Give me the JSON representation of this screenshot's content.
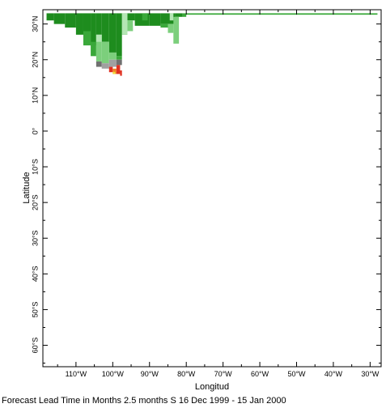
{
  "map": {
    "xlabel": "Longitud",
    "ylabel": "Latitude",
    "x_ticks": [
      {
        "lon": -110,
        "label": "110°W"
      },
      {
        "lon": -100,
        "label": "100°W"
      },
      {
        "lon": -90,
        "label": "90°W"
      },
      {
        "lon": -80,
        "label": "80°W"
      },
      {
        "lon": -70,
        "label": "70°W"
      },
      {
        "lon": -60,
        "label": "60°W"
      },
      {
        "lon": -50,
        "label": "50°W"
      },
      {
        "lon": -40,
        "label": "40°W"
      },
      {
        "lon": -30,
        "label": "30°W"
      }
    ],
    "y_ticks": [
      {
        "lat": 30,
        "label": "30°N"
      },
      {
        "lat": 20,
        "label": "20°N"
      },
      {
        "lat": 10,
        "label": "10°N"
      },
      {
        "lat": 0,
        "label": "0°"
      },
      {
        "lat": -10,
        "label": "10°S"
      },
      {
        "lat": -20,
        "label": "20°S"
      },
      {
        "lat": -30,
        "label": "30°S"
      },
      {
        "lat": -40,
        "label": "40°S"
      },
      {
        "lat": -50,
        "label": "50°S"
      },
      {
        "lat": -60,
        "label": "60°S"
      }
    ],
    "xlim": [
      -119,
      -27
    ],
    "ylim": [
      -66,
      34
    ],
    "colors": {
      "dark_green": "#1e8c1e",
      "mid_green": "#3aa83a",
      "light_green": "#7ccf7c",
      "pale_green": "#b4e6b4",
      "gray": "#a0a0a0",
      "dark_gray": "#707070",
      "red": "#e03020",
      "orange": "#f08020",
      "yellow": "#f0e040"
    },
    "cells": [
      {
        "lon0": -118.0,
        "lon1": -116.0,
        "lat0": 31.0,
        "lat1": 33.0,
        "c": "dark_green"
      },
      {
        "lon0": -116.0,
        "lon1": -113.0,
        "lat0": 30.0,
        "lat1": 33.0,
        "c": "dark_green"
      },
      {
        "lon0": -113.0,
        "lon1": -110.0,
        "lat0": 29.0,
        "lat1": 33.0,
        "c": "dark_green"
      },
      {
        "lon0": -110.0,
        "lon1": -108.0,
        "lat0": 27.0,
        "lat1": 33.0,
        "c": "dark_green"
      },
      {
        "lon0": -108.0,
        "lon1": -106.0,
        "lat0": 25.0,
        "lat1": 33.0,
        "c": "dark_green"
      },
      {
        "lon0": -106.0,
        "lon1": -104.5,
        "lat0": 24.0,
        "lat1": 33.0,
        "c": "dark_green"
      },
      {
        "lon0": -104.5,
        "lon1": -103.0,
        "lat0": 27.0,
        "lat1": 33.0,
        "c": "dark_green"
      },
      {
        "lon0": -103.0,
        "lon1": -101.0,
        "lat0": 25.0,
        "lat1": 33.0,
        "c": "dark_green"
      },
      {
        "lon0": -101.0,
        "lon1": -99.0,
        "lat0": 22.0,
        "lat1": 33.0,
        "c": "dark_green"
      },
      {
        "lon0": -99.0,
        "lon1": -97.5,
        "lat0": 21.0,
        "lat1": 33.0,
        "c": "dark_green"
      },
      {
        "lon0": -97.5,
        "lon1": -96.0,
        "lat0": 27.0,
        "lat1": 33.0,
        "c": "dark_green"
      },
      {
        "lon0": -96.0,
        "lon1": -94.0,
        "lat0": 31.0,
        "lat1": 33.0,
        "c": "dark_green"
      },
      {
        "lon0": -94.0,
        "lon1": -90.0,
        "lat0": 29.5,
        "lat1": 33.0,
        "c": "dark_green"
      },
      {
        "lon0": -90.0,
        "lon1": -87.0,
        "lat0": 29.5,
        "lat1": 33.0,
        "c": "dark_green"
      },
      {
        "lon0": -87.0,
        "lon1": -83.0,
        "lat0": 30.0,
        "lat1": 33.0,
        "c": "dark_green"
      },
      {
        "lon0": -83.0,
        "lon1": -81.0,
        "lat0": 32.0,
        "lat1": 33.0,
        "c": "dark_green"
      },
      {
        "lon0": -81.0,
        "lon1": -80.0,
        "lat0": 32.0,
        "lat1": 33.0,
        "c": "mid_green"
      },
      {
        "lon0": -80.0,
        "lon1": -28.0,
        "lat0": 32.6,
        "lat1": 33.0,
        "c": "mid_green"
      },
      {
        "lon0": -108.0,
        "lon1": -106.0,
        "lat0": 24.0,
        "lat1": 28.0,
        "c": "mid_green"
      },
      {
        "lon0": -106.0,
        "lon1": -104.5,
        "lat0": 21.0,
        "lat1": 25.0,
        "c": "mid_green"
      },
      {
        "lon0": -104.5,
        "lon1": -103.0,
        "lat0": 19.5,
        "lat1": 27.0,
        "c": "light_green"
      },
      {
        "lon0": -103.0,
        "lon1": -101.0,
        "lat0": 19.0,
        "lat1": 25.0,
        "c": "light_green"
      },
      {
        "lon0": -104.5,
        "lon1": -103.0,
        "lat0": 25.0,
        "lat1": 27.0,
        "c": "pale_green"
      },
      {
        "lon0": -101.0,
        "lon1": -99.0,
        "lat0": 20.0,
        "lat1": 22.0,
        "c": "light_green"
      },
      {
        "lon0": -99.0,
        "lon1": -97.5,
        "lat0": 20.0,
        "lat1": 21.0,
        "c": "mid_green"
      },
      {
        "lon0": -104.5,
        "lon1": -103.0,
        "lat0": 18.0,
        "lat1": 19.5,
        "c": "dark_gray"
      },
      {
        "lon0": -103.0,
        "lon1": -101.0,
        "lat0": 17.5,
        "lat1": 19.0,
        "c": "gray"
      },
      {
        "lon0": -101.0,
        "lon1": -99.0,
        "lat0": 18.0,
        "lat1": 20.0,
        "c": "gray"
      },
      {
        "lon0": -99.0,
        "lon1": -97.5,
        "lat0": 18.5,
        "lat1": 20.0,
        "c": "dark_gray"
      },
      {
        "lon0": -101.0,
        "lon1": -100.0,
        "lat0": 16.5,
        "lat1": 18.0,
        "c": "red"
      },
      {
        "lon0": -100.0,
        "lon1": -99.0,
        "lat0": 16.0,
        "lat1": 17.5,
        "c": "orange"
      },
      {
        "lon0": -99.0,
        "lon1": -98.0,
        "lat0": 16.0,
        "lat1": 18.5,
        "c": "red"
      },
      {
        "lon0": -98.0,
        "lon1": -97.5,
        "lat0": 15.5,
        "lat1": 17.0,
        "c": "red"
      },
      {
        "lon0": -100.0,
        "lon1": -99.3,
        "lat0": 16.0,
        "lat1": 16.6,
        "c": "yellow"
      },
      {
        "lon0": -97.5,
        "lon1": -96.0,
        "lat0": 27.0,
        "lat1": 33.0,
        "c": "pale_green"
      },
      {
        "lon0": -96.0,
        "lon1": -94.5,
        "lat0": 28.0,
        "lat1": 31.0,
        "c": "light_green"
      },
      {
        "lon0": -87.0,
        "lon1": -85.0,
        "lat0": 29.0,
        "lat1": 30.0,
        "c": "mid_green"
      },
      {
        "lon0": -85.0,
        "lon1": -83.5,
        "lat0": 27.5,
        "lat1": 30.0,
        "c": "light_green"
      },
      {
        "lon0": -83.5,
        "lon1": -82.0,
        "lat0": 24.5,
        "lat1": 32.0,
        "c": "light_green"
      },
      {
        "lon0": -84.5,
        "lon1": -83.5,
        "lat0": 31.0,
        "lat1": 33.0,
        "c": "pale_green"
      },
      {
        "lon0": -92.0,
        "lon1": -90.5,
        "lat0": 31.0,
        "lat1": 33.0,
        "c": "mid_green"
      }
    ]
  },
  "caption": "Forecast Lead Time in Months 2.5 months S 16 Dec 1999 - 15 Jan 2000"
}
